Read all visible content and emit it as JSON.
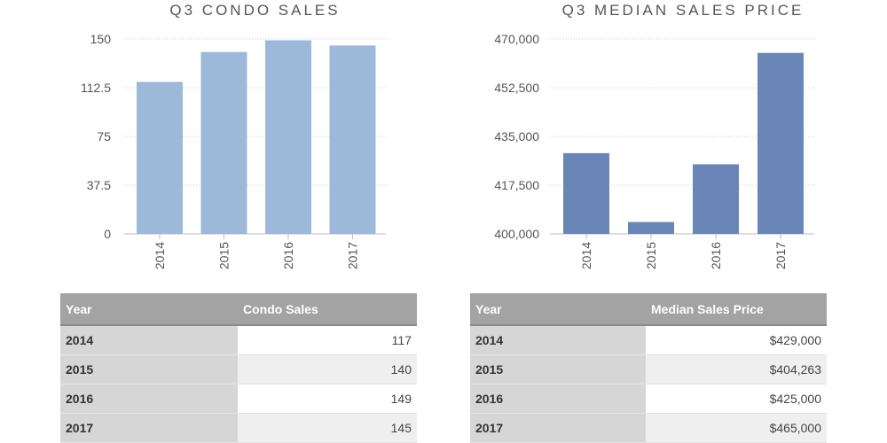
{
  "chart_data": [
    {
      "type": "bar",
      "title": "Q3 CONDO SALES",
      "categories": [
        "2014",
        "2015",
        "2016",
        "2017"
      ],
      "values": [
        117,
        140,
        149,
        145
      ],
      "ylim": [
        0,
        150
      ],
      "yticks": [
        "0",
        "37.5",
        "75",
        "112.5",
        "150"
      ],
      "ytick_values": [
        0,
        37.5,
        75,
        112.5,
        150
      ],
      "grid": true,
      "color": "#9db9d9"
    },
    {
      "type": "bar",
      "title": "Q3 MEDIAN SALES PRICE",
      "categories": [
        "2014",
        "2015",
        "2016",
        "2017"
      ],
      "values": [
        429000,
        404263,
        425000,
        465000
      ],
      "ylim": [
        400000,
        470000
      ],
      "yticks": [
        "400,000",
        "417,500",
        "435,000",
        "452,500",
        "470,000"
      ],
      "ytick_values": [
        400000,
        417500,
        435000,
        452500,
        470000
      ],
      "grid": true,
      "color": "#6a86b6"
    }
  ],
  "tables": [
    {
      "headers": [
        "Year",
        "Condo Sales"
      ],
      "rows": [
        [
          "2014",
          "117"
        ],
        [
          "2015",
          "140"
        ],
        [
          "2016",
          "149"
        ],
        [
          "2017",
          "145"
        ]
      ]
    },
    {
      "headers": [
        "Year",
        "Median Sales Price"
      ],
      "rows": [
        [
          "2014",
          "$429,000"
        ],
        [
          "2015",
          "$404,263"
        ],
        [
          "2016",
          "$425,000"
        ],
        [
          "2017",
          "$465,000"
        ]
      ]
    }
  ]
}
